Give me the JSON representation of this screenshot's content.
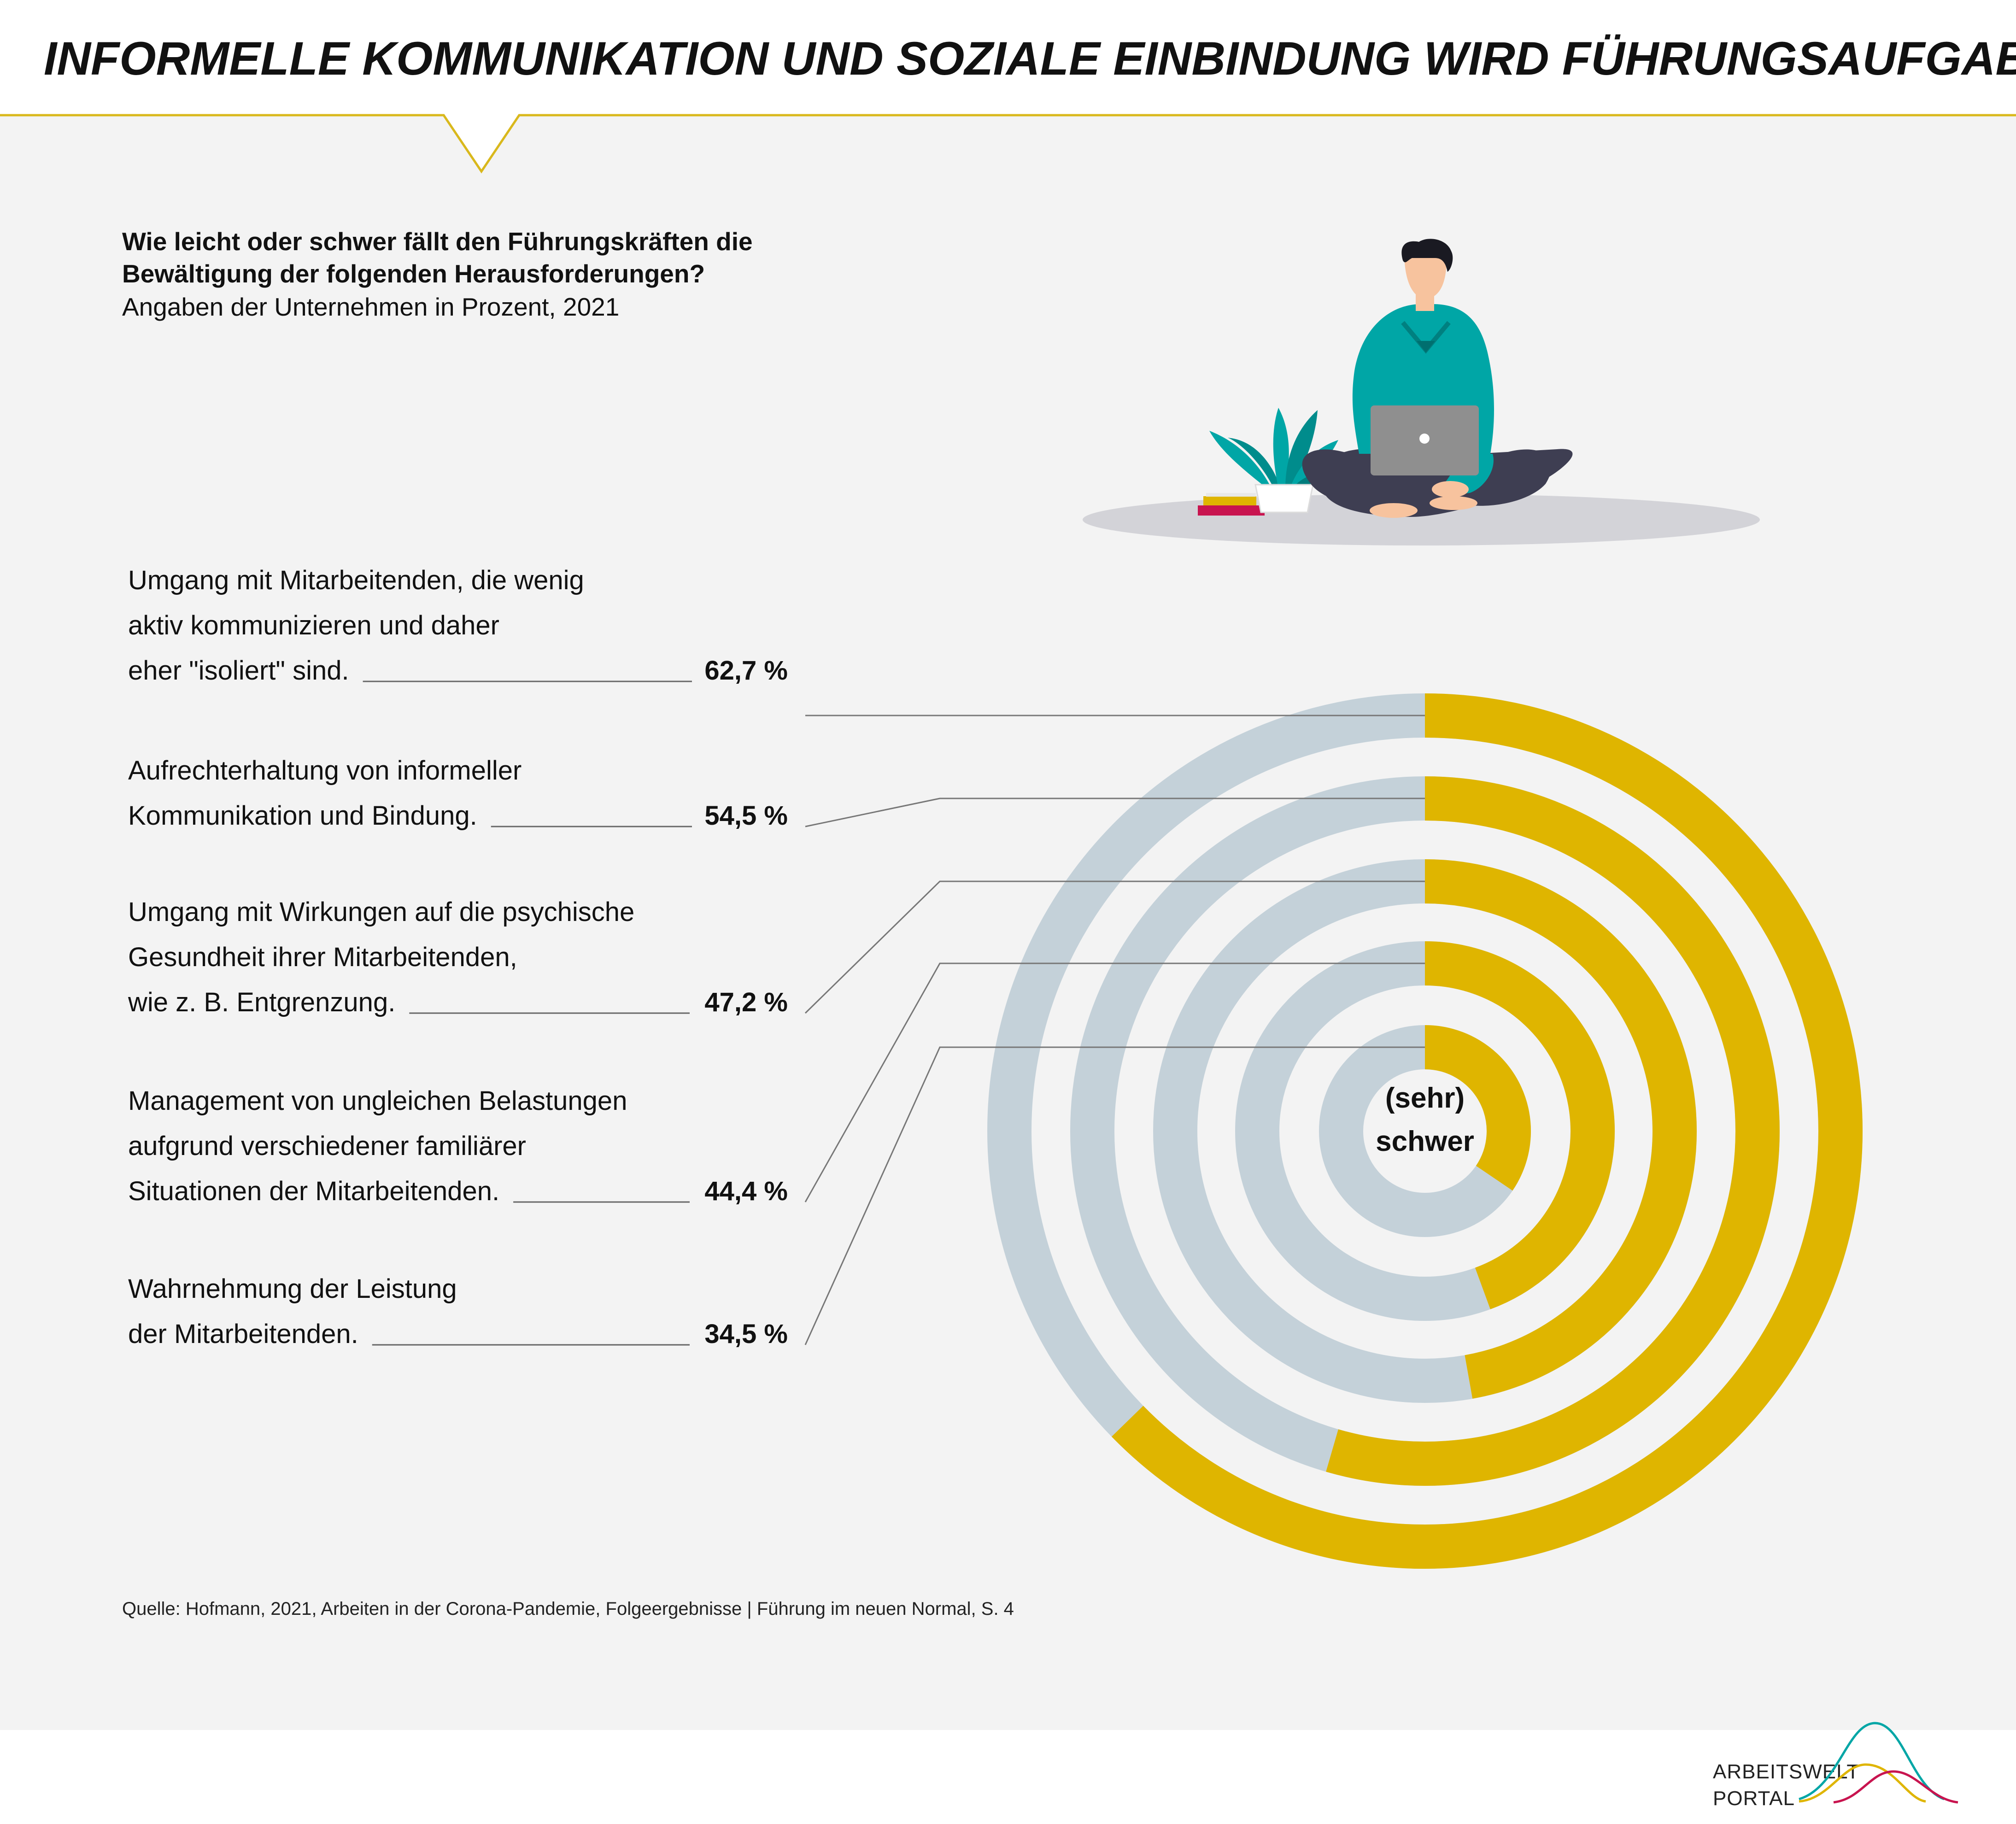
{
  "header": {
    "title": "INFORMELLE KOMMUNIKATION UND SOZIALE EINBINDUNG WIRD FÜHRUNGSAUFGABE"
  },
  "intro": {
    "question_line1": "Wie leicht oder schwer fällt den Führungskräften die",
    "question_line2": "Bewältigung der folgenden Herausforderungen?",
    "subtitle": "Angaben der Unternehmen in Prozent, 2021"
  },
  "chart_data": {
    "type": "radial_bar",
    "center_label_line1": "(sehr)",
    "center_label_line2": "schwer",
    "scale_max_percent": 100,
    "colors": {
      "value": "#dfb500",
      "track": "#c4d1d9",
      "background": "#f3f3f3",
      "accent_line": "#d9b81c"
    },
    "items": [
      {
        "label_lines": [
          "Umgang mit Mitarbeitenden, die wenig",
          "aktiv kommunizieren und daher",
          "eher \"isoliert\" sind."
        ],
        "value": 62.7,
        "value_label": "62,7 %"
      },
      {
        "label_lines": [
          "Aufrechterhaltung von informeller",
          "Kommunikation und Bindung."
        ],
        "value": 54.5,
        "value_label": "54,5 %"
      },
      {
        "label_lines": [
          "Umgang mit Wirkungen auf die psychische",
          "Gesundheit ihrer Mitarbeitenden,",
          "wie z. B. Entgrenzung."
        ],
        "value": 47.2,
        "value_label": "47,2 %"
      },
      {
        "label_lines": [
          "Management von ungleichen Belastungen",
          "aufgrund verschiedener familiärer",
          "Situationen der Mitarbeitenden."
        ],
        "value": 44.4,
        "value_label": "44,4 %"
      },
      {
        "label_lines": [
          "Wahrnehmung der Leistung",
          "der Mitarbeitenden."
        ],
        "value": 34.5,
        "value_label": "34,5 %"
      }
    ]
  },
  "footer": {
    "source": "Quelle: Hofmann, 2021, Arbeiten in der Corona-Pandemie, Folgeergebnisse | Führung im neuen Normal, S. 4",
    "logo_line1": "ARBEITSWELT",
    "logo_line2": "PORTAL"
  },
  "illustration": {
    "icon": "person-with-laptop-illustration"
  }
}
